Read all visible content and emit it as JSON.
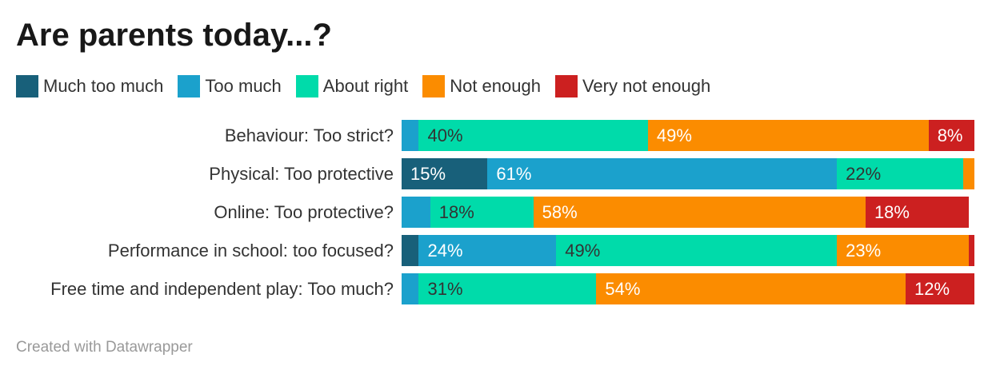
{
  "chart_data": {
    "type": "bar",
    "stacked": true,
    "orientation": "horizontal",
    "title": "Are parents today...?",
    "legend": [
      {
        "name": "Much too much",
        "color": "#18607a"
      },
      {
        "name": "Too much",
        "color": "#1ba1cc"
      },
      {
        "name": "About right",
        "color": "#00dbaa"
      },
      {
        "name": "Not enough",
        "color": "#fb8c00"
      },
      {
        "name": "Very not enough",
        "color": "#cc2020"
      }
    ],
    "categories": [
      "Behaviour: Too strict?",
      "Physical: Too protective",
      "Online: Too protective?",
      "Performance in school: too focused?",
      "Free time and independent play: Too much?"
    ],
    "series": [
      {
        "name": "Much too much",
        "values": [
          0,
          15,
          0,
          3,
          0
        ]
      },
      {
        "name": "Too much",
        "values": [
          3,
          61,
          5,
          24,
          3
        ]
      },
      {
        "name": "About right",
        "values": [
          40,
          22,
          18,
          49,
          31
        ]
      },
      {
        "name": "Not enough",
        "values": [
          49,
          2,
          58,
          23,
          54
        ]
      },
      {
        "name": "Very not enough",
        "values": [
          8,
          0,
          18,
          1,
          12
        ]
      }
    ],
    "label_threshold": 8,
    "xlim": [
      0,
      100
    ]
  },
  "footer": "Created with Datawrapper"
}
